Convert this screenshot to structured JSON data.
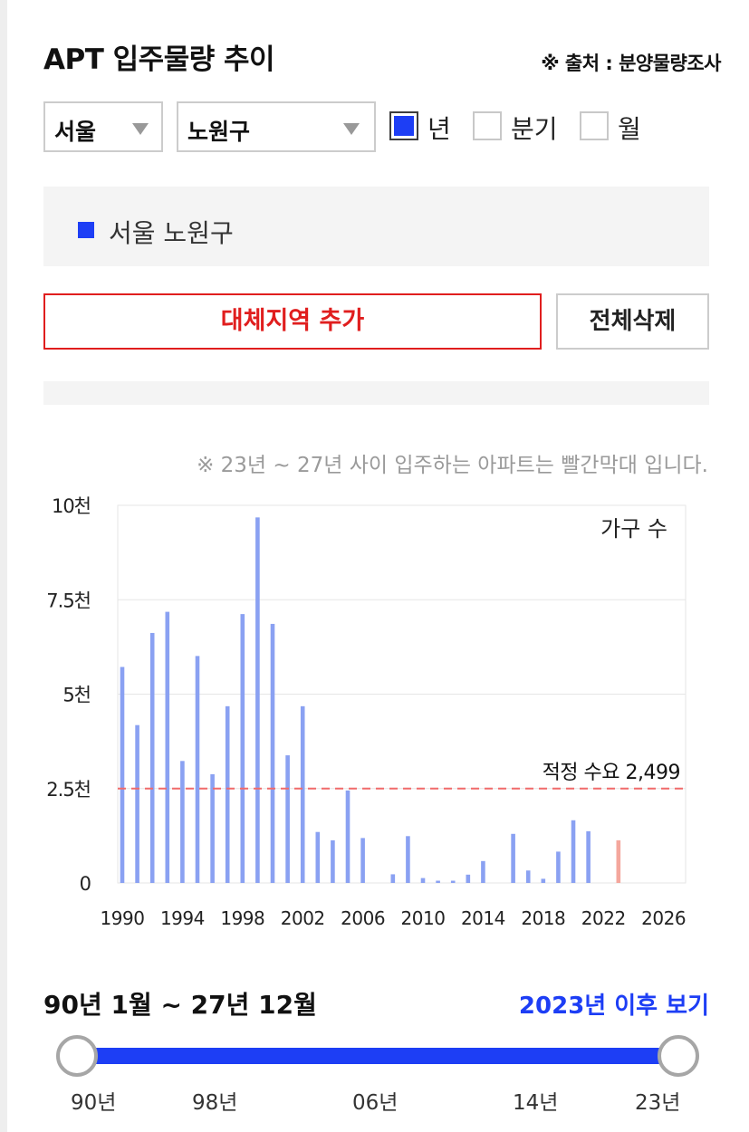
{
  "header": {
    "title": "APT 입주물량 추이",
    "source": "※ 출처 : 분양물량조사"
  },
  "filters": {
    "city": "서울",
    "district": "노원구",
    "period_options": [
      {
        "label": "년",
        "checked": true
      },
      {
        "label": "분기",
        "checked": false
      },
      {
        "label": "월",
        "checked": false
      }
    ]
  },
  "region_list": [
    {
      "name": "서울 노원구",
      "color": "#1d3ef5"
    }
  ],
  "buttons": {
    "add_alt_region": "대체지역 추가",
    "delete_all": "전체삭제"
  },
  "note": "※ 23년 ~ 27년 사이 입주하는 아파트는 빨간막대 입니다.",
  "chart_data": {
    "type": "bar",
    "unit_label": "가구 수",
    "ylim": [
      0,
      10000
    ],
    "y_ticks": [
      {
        "value": 0,
        "label": "0"
      },
      {
        "value": 2500,
        "label": "2.5천"
      },
      {
        "value": 5000,
        "label": "5천"
      },
      {
        "value": 7500,
        "label": "7.5천"
      },
      {
        "value": 10000,
        "label": "10천"
      }
    ],
    "xlim": [
      1990,
      2027
    ],
    "x_ticks": [
      1990,
      1994,
      1998,
      2002,
      2006,
      2010,
      2014,
      2018,
      2022,
      2026
    ],
    "grid": true,
    "bar_color": "#8aa1f2",
    "future_bar_color": "#f4a79d",
    "future_from": 2023,
    "reference_line": {
      "value": 2499,
      "label": "적정 수요 2,499",
      "color": "#f06a6a"
    },
    "x": [
      1990,
      1991,
      1992,
      1993,
      1994,
      1995,
      1996,
      1997,
      1998,
      1999,
      2000,
      2001,
      2002,
      2003,
      2004,
      2005,
      2006,
      2007,
      2008,
      2009,
      2010,
      2011,
      2012,
      2013,
      2014,
      2015,
      2016,
      2017,
      2018,
      2019,
      2020,
      2021,
      2022,
      2023,
      2024,
      2025,
      2026,
      2027
    ],
    "values": [
      5720,
      4180,
      6620,
      7180,
      3230,
      6010,
      2880,
      4680,
      7120,
      9680,
      6860,
      3380,
      4680,
      1350,
      1130,
      2450,
      1190,
      0,
      230,
      1240,
      130,
      60,
      60,
      220,
      580,
      0,
      1300,
      330,
      110,
      830,
      1660,
      1370,
      0,
      1130,
      0,
      0,
      0,
      0
    ]
  },
  "range": {
    "text": "90년 1월 ~ 27년 12월",
    "link": "2023년 이후 보기",
    "labels": [
      "90년",
      "98년",
      "06년",
      "14년",
      "23년"
    ]
  }
}
